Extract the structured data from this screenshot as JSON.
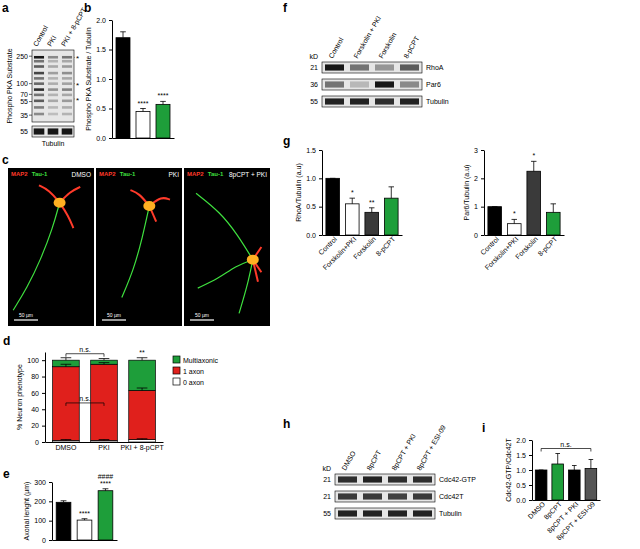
{
  "chart_data": [
    {
      "panel_label": "b",
      "type": "bar",
      "y_label": "Phospho PKA Substrate / Tubulin",
      "categories": [
        null,
        null,
        null
      ],
      "values": [
        1.7,
        0.45,
        0.57
      ],
      "errors": [
        0.1,
        0.05,
        0.05
      ],
      "colors": [
        "#000000",
        "#ffffff",
        "#1e9e3a"
      ],
      "ylim": [
        0,
        2
      ],
      "yticks": [
        {
          "value": 0,
          "label": "0.0"
        },
        0.5,
        {
          "value": 1,
          "label": "1.0"
        },
        1.5,
        {
          "value": 2,
          "label": "2.0"
        }
      ],
      "significance": [
        [],
        [
          "****"
        ],
        [
          "****"
        ]
      ]
    },
    {
      "panel_label": "d",
      "type": "bar",
      "stacked": true,
      "legend": "right",
      "y_label": "% Neuron phenotype",
      "categories": [
        "DMSO",
        "PKI",
        "PKI + 8-pCPT"
      ],
      "series": [
        {
          "name": "0 axon",
          "color": "#ffffff",
          "values": [
            2,
            2,
            3
          ],
          "errors": [
            1,
            1,
            1
          ],
          "significance": [
            [],
            [],
            []
          ]
        },
        {
          "name": "1 axon",
          "color": "#e0201c",
          "values": [
            90,
            93,
            60
          ],
          "errors": [
            3,
            2,
            3
          ],
          "significance": [
            [],
            [],
            []
          ]
        },
        {
          "name": "Multiaxonic",
          "color": "#1e9e3a",
          "values": [
            8,
            5,
            37
          ],
          "errors": [
            3,
            2,
            3
          ],
          "significance": [
            [],
            [],
            [
              "**"
            ]
          ]
        }
      ],
      "ylim": [
        0,
        110
      ],
      "yticks": [
        0,
        20,
        40,
        60,
        80,
        100
      ],
      "comparisons": [
        {
          "text": "n.s.",
          "between": [
            "DMSO",
            "PKI"
          ],
          "series": "Multiaxonic"
        },
        {
          "text": "n.s.",
          "between": [
            "DMSO",
            "PKI"
          ],
          "series": "1 axon"
        }
      ]
    },
    {
      "panel_label": "e",
      "type": "bar",
      "y_label": "Axonal lenght (µm)",
      "categories": [
        null,
        null,
        null
      ],
      "values": [
        195,
        103,
        255
      ],
      "errors": [
        8,
        7,
        10
      ],
      "colors": [
        "#000000",
        "#ffffff",
        "#1e9e3a"
      ],
      "ylim": [
        0,
        300
      ],
      "yticks": [
        0,
        100,
        200,
        300
      ],
      "significance": [
        [],
        [
          "****"
        ],
        [
          "****",
          "####"
        ]
      ]
    },
    {
      "panel_label": "g",
      "type": "bar",
      "y_label": "RhoA/Tubulin (a.u)",
      "categories": [
        "Control",
        "Forskolin+PKI",
        "Forskolin",
        "8-pCPT"
      ],
      "values": [
        1.0,
        0.55,
        0.4,
        0.65
      ],
      "errors": [
        0,
        0.1,
        0.08,
        0.2
      ],
      "colors": [
        "#000000",
        "#ffffff",
        "#3a3a3a",
        "#1e9e3a"
      ],
      "ylim": [
        0,
        1.5
      ],
      "yticks": [
        {
          "value": 0,
          "label": "0.0"
        },
        0.5,
        {
          "value": 1,
          "label": "1.0"
        },
        1.5
      ],
      "significance": [
        [],
        [
          "*"
        ],
        [
          "**"
        ],
        []
      ]
    },
    {
      "type": "bar",
      "y_label": "Par6/Tubulin (a.u)",
      "categories": [
        "Control",
        "Forskolin+PKI",
        "Forskolin",
        "8-pCPT"
      ],
      "values": [
        1.0,
        0.4,
        2.25,
        0.8
      ],
      "errors": [
        0,
        0.15,
        0.35,
        0.3
      ],
      "colors": [
        "#000000",
        "#ffffff",
        "#3a3a3a",
        "#1e9e3a"
      ],
      "ylim": [
        0,
        3
      ],
      "yticks": [
        0,
        1,
        2,
        3
      ],
      "significance": [
        [],
        [
          "*"
        ],
        [
          "*"
        ],
        []
      ]
    },
    {
      "panel_label": "i",
      "type": "bar",
      "y_label": "Cdc42-GTP/Cdc42T",
      "categories": [
        "DMSO",
        "8pCPT",
        "8pCPT + PKI",
        "8pCPT + ESI-09"
      ],
      "values": [
        1.0,
        1.2,
        1.0,
        1.05
      ],
      "errors": [
        0,
        0.35,
        0.15,
        0.3
      ],
      "colors": [
        "#000000",
        "#1e9e3a",
        "#000000",
        "#555555"
      ],
      "ylim": [
        0,
        2
      ],
      "yticks": [
        {
          "value": 0,
          "label": "0.0"
        },
        0.5,
        {
          "value": 1,
          "label": "1.0"
        },
        1.5,
        {
          "value": 2,
          "label": "2.0"
        }
      ],
      "significance": [
        [],
        [],
        [],
        []
      ],
      "comparisons": [
        {
          "text": "n.s.",
          "between": [
            "DMSO",
            "8pCPT + ESI-09"
          ]
        }
      ]
    }
  ],
  "blots": [
    {
      "panel_label": "a",
      "lanes": [
        "Control",
        "PKI",
        "PKI + 8-pCPT"
      ],
      "rows": [
        {
          "name": "Phospho PKA Substrate",
          "markers": [
            250,
            100,
            70,
            55,
            35
          ]
        },
        {
          "name": "Tubulin",
          "markers": [
            55
          ]
        }
      ],
      "annotations": [
        {
          "text": "*",
          "kD": 240
        },
        {
          "text": "*",
          "kD": 100
        },
        {
          "text": "*",
          "kD": 60
        }
      ]
    },
    {
      "panel_label": "f",
      "unit": "kD",
      "lanes": [
        "Control",
        "Forskolin + PKI",
        "Forskolin",
        "8-pCPT"
      ],
      "rows": [
        {
          "name": "RhoA",
          "markers": [
            21
          ]
        },
        {
          "name": "Par6",
          "markers": [
            36
          ]
        },
        {
          "name": "Tubulin",
          "markers": [
            55
          ]
        }
      ]
    },
    {
      "panel_label": "h",
      "unit": "kD",
      "lanes": [
        "DMSO",
        "8pCPT",
        "8pCPT + PKI",
        "8pCPT + ESI-09"
      ],
      "rows": [
        {
          "name": "Cdc42-GTP",
          "markers": [
            21
          ]
        },
        {
          "name": "Cdc42T",
          "markers": [
            21
          ]
        },
        {
          "name": "Tubulin",
          "markers": [
            55
          ]
        }
      ]
    }
  ],
  "images": {
    "panel_label": "c",
    "stains": [
      {
        "name": "MAP2",
        "color": "#ff3a2a"
      },
      {
        "name": "Tau-1",
        "color": "#3fe03f"
      }
    ],
    "panels": [
      {
        "title": "DMSO",
        "scale_bar": "50 µm"
      },
      {
        "title": "PKI",
        "scale_bar": "50 µm"
      },
      {
        "title": "8pCPT + PKI",
        "scale_bar": "50 µm"
      }
    ]
  }
}
